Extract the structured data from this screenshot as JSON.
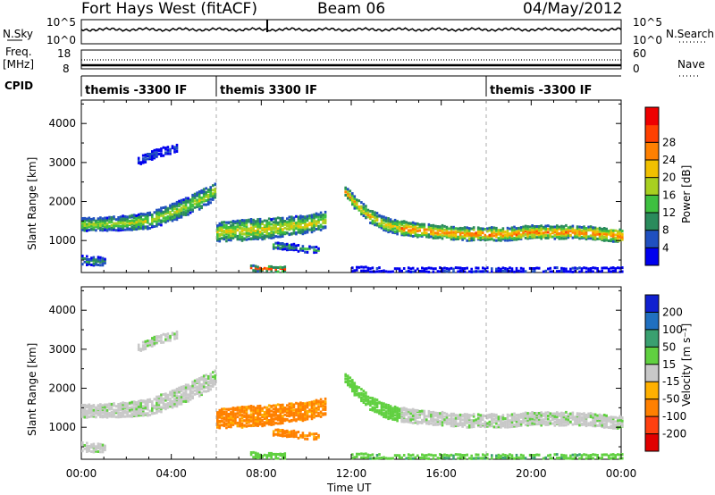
{
  "header": {
    "station": "Fort Hays West (fitACF)",
    "beam": "Beam 06",
    "date": "04/May/2012"
  },
  "side_labels": {
    "nsky": "N.Sky",
    "nsearch": "N.Search",
    "freq_line1": "Freq.",
    "freq_line2": "[MHz]",
    "nave": "Nave",
    "cpid": "CPID"
  },
  "noise_panel": {
    "left_ticks": [
      "10^5",
      "10^0"
    ],
    "right_ticks": [
      "10^5",
      "10^0"
    ]
  },
  "freq_panel": {
    "left_ticks": [
      "18",
      "8"
    ],
    "right_ticks": [
      "60",
      "0"
    ]
  },
  "cpid_segments": [
    {
      "label": "themis -3300 IF",
      "start_h": 0,
      "end_h": 6
    },
    {
      "label": "themis 3300 IF",
      "start_h": 6,
      "end_h": 18
    },
    {
      "label": "themis -3300 IF",
      "start_h": 18,
      "end_h": 24
    }
  ],
  "x_axis": {
    "label": "Time UT",
    "ticks": [
      "00:00",
      "04:00",
      "08:00",
      "12:00",
      "16:00",
      "20:00",
      "00:00"
    ],
    "range_h": [
      0,
      24
    ]
  },
  "power_panel": {
    "ylabel": "Slant Range [km]",
    "yticks": [
      "1000",
      "2000",
      "3000",
      "4000"
    ],
    "ylim_km": [
      180,
      4600
    ],
    "colorbar": {
      "label": "Power [dB]",
      "ticks": [
        "4",
        "8",
        "12",
        "16",
        "20",
        "24",
        "28"
      ],
      "range": [
        0,
        32
      ],
      "colors": [
        "#0000ee",
        "#2050c0",
        "#2a8b5c",
        "#3ec040",
        "#a8d020",
        "#f0c000",
        "#ff8000",
        "#ff4000",
        "#ee0000"
      ]
    }
  },
  "velocity_panel": {
    "ylabel": "Slant Range [km]",
    "yticks": [
      "1000",
      "2000",
      "3000",
      "4000"
    ],
    "ylim_km": [
      180,
      4600
    ],
    "colorbar": {
      "label": "Velocity [m s⁻¹]",
      "ticks": [
        "200",
        "100",
        "50",
        "15",
        "-15",
        "-50",
        "-100",
        "-200"
      ],
      "colors": [
        "#1020d0",
        "#2070c0",
        "#3aa070",
        "#60d040",
        "#c8c8c8",
        "#ffb000",
        "#ff8000",
        "#ff4010",
        "#e00000"
      ]
    }
  },
  "chart_data": {
    "type": "heatmap",
    "echo_bands": [
      {
        "name": "band-1",
        "t": [
          0.0,
          1.0,
          2.0,
          3.0,
          4.0,
          4.8,
          5.5,
          5.9
        ],
        "center_km": [
          1450,
          1450,
          1480,
          1550,
          1750,
          1950,
          2150,
          2300
        ],
        "width_km": [
          300,
          300,
          350,
          380,
          420,
          420,
          420,
          380
        ],
        "power_db": 15,
        "velocity": 5
      },
      {
        "name": "band-2",
        "t": [
          0.0,
          0.5,
          1.0
        ],
        "center_km": [
          520,
          500,
          480
        ],
        "width_km": [
          200,
          200,
          180
        ],
        "power_db": 10,
        "velocity": 5
      },
      {
        "name": "band-3",
        "t": [
          2.5,
          3.0,
          3.5,
          4.2
        ],
        "center_km": [
          3050,
          3200,
          3300,
          3400
        ],
        "width_km": [
          160,
          180,
          180,
          160
        ],
        "power_db": 4,
        "velocity": 5
      },
      {
        "name": "band-4",
        "t": [
          6.0,
          7.0,
          8.0,
          9.0,
          10.0,
          10.8
        ],
        "center_km": [
          1250,
          1300,
          1320,
          1380,
          1450,
          1550
        ],
        "width_km": [
          450,
          500,
          500,
          450,
          420,
          400
        ],
        "power_db": 17,
        "velocity": -60
      },
      {
        "name": "band-5",
        "t": [
          8.5,
          9.5,
          10.5
        ],
        "center_km": [
          900,
          850,
          780
        ],
        "width_km": [
          160,
          140,
          120
        ],
        "power_db": 10,
        "velocity": -60
      },
      {
        "name": "band-6",
        "t": [
          7.5,
          8.2,
          9.0
        ],
        "center_km": [
          320,
          310,
          300
        ],
        "width_km": [
          120,
          100,
          100
        ],
        "power_db": 24,
        "velocity": 30
      },
      {
        "name": "band-7",
        "t": [
          11.7,
          12.2,
          12.8,
          13.5,
          14.2
        ],
        "center_km": [
          2300,
          1950,
          1650,
          1450,
          1350
        ],
        "width_km": [
          260,
          280,
          300,
          320,
          340
        ],
        "power_db": 19,
        "velocity": 35
      },
      {
        "name": "band-8",
        "t": [
          14.2,
          15.0,
          16.0,
          17.0,
          18.0,
          19.0,
          20.0,
          21.0,
          22.0,
          23.0,
          24.0
        ],
        "center_km": [
          1350,
          1300,
          1250,
          1200,
          1200,
          1200,
          1250,
          1250,
          1250,
          1200,
          1150
        ],
        "width_km": [
          340,
          320,
          300,
          300,
          300,
          300,
          300,
          300,
          300,
          300,
          300
        ],
        "power_db": 23,
        "velocity": 5
      },
      {
        "name": "band-9",
        "t": [
          12.0,
          14.0,
          16.0,
          18.0,
          20.0,
          22.0,
          24.0
        ],
        "center_km": [
          300,
          280,
          280,
          280,
          280,
          280,
          280
        ],
        "width_km": [
          80,
          80,
          80,
          80,
          80,
          80,
          80
        ],
        "power_db": 5,
        "velocity": 40
      }
    ]
  }
}
